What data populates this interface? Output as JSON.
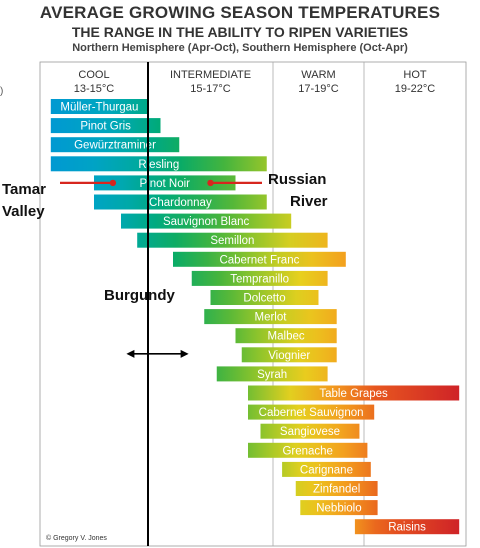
{
  "title": "AVERAGE GROWING SEASON TEMPERATURES",
  "subtitle": "THE RANGE IN THE ABILITY TO RIPEN VARIETIES",
  "note": "Northern Hemisphere (Apr-Oct), Southern Hemisphere (Oct-Apr)",
  "credit": "© Gregory V. Jones",
  "edge_mark": ")",
  "chart_data": {
    "type": "bar",
    "subtype": "floating-range",
    "zones": [
      {
        "name": "COOL",
        "range": "13-15°C"
      },
      {
        "name": "INTERMEDIATE",
        "range": "15-17°C"
      },
      {
        "name": "WARM",
        "range": "17-19°C"
      },
      {
        "name": "HOT",
        "range": "19-22°C"
      }
    ],
    "zone_bounds": [
      13,
      15,
      17,
      19,
      22
    ],
    "categories": [
      "Müller-Thurgau",
      "Pinot Gris",
      "Gewürztraminer",
      "Riesling",
      "Pinot Noir",
      "Chardonnay",
      "Sauvignon Blanc",
      "Semillon",
      "Cabernet Franc",
      "Tempranillo",
      "Dolcetto",
      "Merlot",
      "Malbec",
      "Viognier",
      "Syrah",
      "Table Grapes",
      "Cabernet Sauvignon",
      "Sangiovese",
      "Grenache",
      "Carignane",
      "Zinfandel",
      "Nebbiolo",
      "Raisins"
    ],
    "ranges": [
      [
        13.2,
        15.0
      ],
      [
        13.2,
        15.2
      ],
      [
        13.2,
        15.5
      ],
      [
        13.2,
        16.9
      ],
      [
        14.0,
        16.4
      ],
      [
        14.0,
        16.9
      ],
      [
        14.5,
        17.4
      ],
      [
        14.8,
        18.2
      ],
      [
        15.4,
        18.6
      ],
      [
        15.7,
        18.2
      ],
      [
        16.0,
        18.0
      ],
      [
        15.9,
        18.4
      ],
      [
        16.4,
        18.4
      ],
      [
        16.5,
        18.4
      ],
      [
        16.1,
        18.2
      ],
      [
        16.6,
        21.8
      ],
      [
        16.6,
        19.3
      ],
      [
        16.8,
        18.9
      ],
      [
        16.6,
        19.1
      ],
      [
        17.2,
        19.2
      ],
      [
        17.5,
        19.4
      ],
      [
        17.6,
        19.4
      ],
      [
        18.8,
        21.8
      ]
    ],
    "annotations": [
      {
        "text": "Tamar",
        "line2": "Valley",
        "side": "left",
        "at": 14.35,
        "row": 4
      },
      {
        "text": "Russian",
        "line2": "River",
        "side": "right",
        "at": 16.0,
        "row": 4
      },
      {
        "text": "Burgundy",
        "at": 15.1,
        "row": 10.5,
        "arrow_range": [
          14.6,
          15.65
        ],
        "arrow_row": 13.5
      }
    ],
    "xlim": [
      13,
      22
    ],
    "grid": true
  }
}
